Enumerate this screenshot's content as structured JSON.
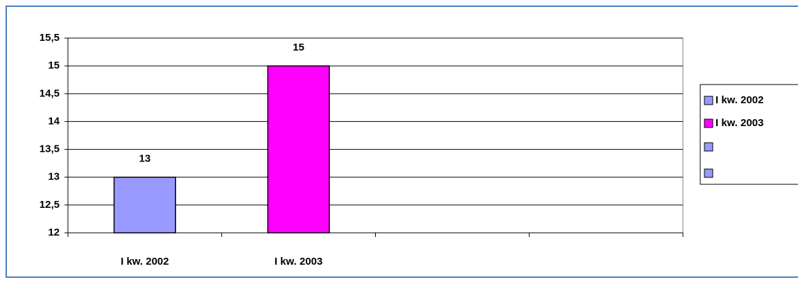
{
  "chart_data": {
    "type": "bar",
    "categories": [
      "I kw. 2002",
      "I kw. 2003",
      null,
      null
    ],
    "values": [
      13,
      15,
      null,
      null
    ],
    "colors": [
      "#9999ff",
      "#ff00ff",
      "#9999ff",
      "#9999ff"
    ],
    "ylim": [
      12,
      15.5
    ],
    "yticks": [
      12,
      {
        "value": 12.5,
        "label": "12,5"
      },
      13,
      {
        "value": 13.5,
        "label": "13,5"
      },
      14,
      {
        "value": 14.5,
        "label": "14,5"
      },
      15,
      {
        "value": 15.5,
        "label": "15,5"
      }
    ],
    "grid": true,
    "legend": "right"
  }
}
